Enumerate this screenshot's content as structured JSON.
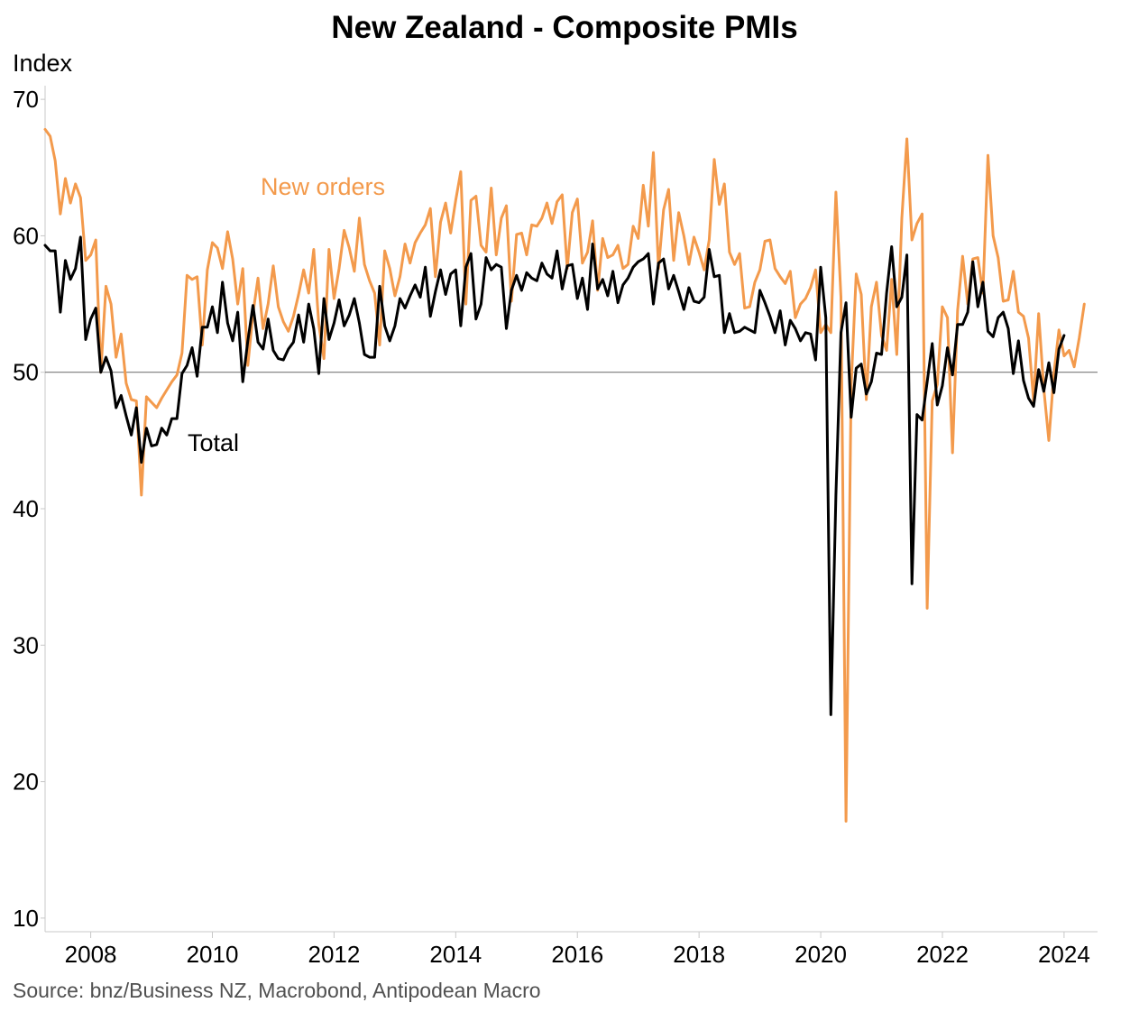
{
  "chart_data": {
    "type": "line",
    "title": "New Zealand - Composite PMIs",
    "ylabel": "Index",
    "xlabel": "",
    "ylim": [
      9,
      71
    ],
    "xlim": [
      2007.25,
      2024.55
    ],
    "yticks": [
      10,
      20,
      30,
      40,
      50,
      60,
      70
    ],
    "xticks": [
      2008,
      2010,
      2012,
      2014,
      2016,
      2018,
      2020,
      2022,
      2024
    ],
    "reference_line": 50,
    "source": "Source: bnz/Business NZ, Macrobond, Antipodean Macro",
    "start": 2007.25,
    "step": 0.08333,
    "series": [
      {
        "name": "New orders",
        "label": "New orders",
        "color": "#F39A4C",
        "values": [
          67.8,
          67.3,
          65.5,
          61.6,
          64.2,
          62.4,
          63.8,
          62.8,
          58.2,
          58.6,
          59.7,
          50.0,
          56.3,
          55.0,
          51.1,
          52.8,
          49.2,
          48.0,
          47.9,
          41.0,
          48.2,
          47.8,
          47.4,
          48.1,
          48.7,
          49.3,
          49.8,
          51.4,
          57.1,
          56.8,
          57.0,
          52.0,
          57.5,
          59.5,
          59.1,
          57.6,
          60.3,
          58.3,
          55.0,
          57.6,
          50.5,
          54.3,
          56.9,
          53.2,
          55.0,
          57.8,
          54.8,
          53.7,
          53.0,
          54.1,
          55.7,
          57.5,
          55.8,
          59.0,
          53.5,
          51.0,
          59.0,
          55.4,
          57.6,
          60.4,
          59.1,
          57.4,
          61.3,
          57.9,
          56.7,
          55.8,
          52.0,
          58.9,
          57.6,
          55.6,
          57.0,
          59.4,
          58.0,
          59.5,
          60.2,
          60.8,
          62.0,
          57.0,
          61.0,
          62.4,
          60.2,
          62.6,
          64.7,
          55.0,
          62.6,
          62.9,
          59.3,
          58.8,
          63.5,
          58.6,
          61.3,
          62.2,
          55.2,
          60.1,
          60.2,
          58.6,
          60.8,
          60.7,
          61.3,
          62.4,
          60.9,
          62.5,
          63.0,
          57.6,
          61.7,
          62.7,
          58.0,
          58.8,
          61.1,
          56.0,
          59.8,
          58.4,
          58.6,
          59.3,
          57.6,
          57.9,
          60.7,
          59.8,
          63.7,
          60.7,
          66.1,
          57.6,
          61.9,
          63.4,
          58.2,
          61.7,
          60.0,
          57.9,
          59.9,
          58.8,
          57.5,
          59.7,
          65.6,
          62.3,
          63.8,
          58.8,
          57.9,
          58.7,
          54.7,
          54.8,
          56.6,
          57.5,
          59.6,
          59.7,
          57.6,
          57.0,
          56.5,
          57.4,
          54.0,
          55.0,
          55.4,
          56.2,
          57.5,
          52.9,
          53.5,
          52.9,
          63.2,
          55.5,
          17.1,
          49.0,
          57.2,
          55.7,
          48.0,
          54.8,
          56.6,
          52.7,
          51.6,
          56.8,
          51.3,
          61.3,
          67.1,
          59.7,
          60.9,
          61.6,
          32.7,
          47.9,
          49.1,
          54.8,
          54.0,
          44.1,
          54.5,
          58.5,
          55.0,
          58.3,
          58.4,
          55.8,
          65.9,
          60.0,
          58.4,
          55.2,
          55.3,
          57.4,
          54.4,
          54.1,
          52.5,
          47.9,
          54.3,
          48.8,
          45.0,
          49.9,
          53.1,
          51.2,
          51.6,
          50.4,
          52.5,
          55.0
        ]
      },
      {
        "name": "Total",
        "label": "Total",
        "color": "#000000",
        "values": [
          59.3,
          58.9,
          58.9,
          54.4,
          58.2,
          56.8,
          57.6,
          59.9,
          52.4,
          53.9,
          54.7,
          50.0,
          51.1,
          50.1,
          47.4,
          48.3,
          46.8,
          45.4,
          47.4,
          43.4,
          45.9,
          44.6,
          44.7,
          45.9,
          45.4,
          46.6,
          46.6,
          49.9,
          50.5,
          51.8,
          49.7,
          53.3,
          53.3,
          54.8,
          52.9,
          56.6,
          53.6,
          52.3,
          54.4,
          49.3,
          52.3,
          54.9,
          52.2,
          51.7,
          53.9,
          51.6,
          51.0,
          50.9,
          51.7,
          52.2,
          54.2,
          52.2,
          55.0,
          53.2,
          49.9,
          55.4,
          52.4,
          53.6,
          55.3,
          53.4,
          54.2,
          55.4,
          53.6,
          51.3,
          51.1,
          51.1,
          56.3,
          53.4,
          52.3,
          53.4,
          55.4,
          54.7,
          55.6,
          56.4,
          55.5,
          57.7,
          54.1,
          55.9,
          57.5,
          55.7,
          57.2,
          57.5,
          53.4,
          57.7,
          58.7,
          53.9,
          55.0,
          58.4,
          57.5,
          57.9,
          57.7,
          53.2,
          56.0,
          57.1,
          56.0,
          57.3,
          56.9,
          56.7,
          58.0,
          57.2,
          56.9,
          58.9,
          56.1,
          57.8,
          57.9,
          55.4,
          56.9,
          54.6,
          59.4,
          56.1,
          56.8,
          55.6,
          57.4,
          55.1,
          56.4,
          56.9,
          57.7,
          58.1,
          58.3,
          58.7,
          55.0,
          58.0,
          58.3,
          56.1,
          57.1,
          55.9,
          54.6,
          56.2,
          55.2,
          55.1,
          55.5,
          59.0,
          57.0,
          57.1,
          52.9,
          54.3,
          52.9,
          53.0,
          53.3,
          53.1,
          52.9,
          56.0,
          55.1,
          54.1,
          52.9,
          54.5,
          52.0,
          53.8,
          53.2,
          52.3,
          52.9,
          52.8,
          50.9,
          57.7,
          54.0,
          24.9,
          41.0,
          52.9,
          55.1,
          46.7,
          50.3,
          50.6,
          48.4,
          49.3,
          51.4,
          51.3,
          55.8,
          59.2,
          54.8,
          55.5,
          58.6,
          34.5,
          46.9,
          46.5,
          49.3,
          52.1,
          47.6,
          49.0,
          51.8,
          49.8,
          53.5,
          53.5,
          54.4,
          58.1,
          54.8,
          56.6,
          53.0,
          52.6,
          54.0,
          54.4,
          53.2,
          49.9,
          52.3,
          49.4,
          48.1,
          47.5,
          50.2,
          48.6,
          50.7,
          48.5,
          51.7,
          52.7
        ]
      }
    ]
  }
}
